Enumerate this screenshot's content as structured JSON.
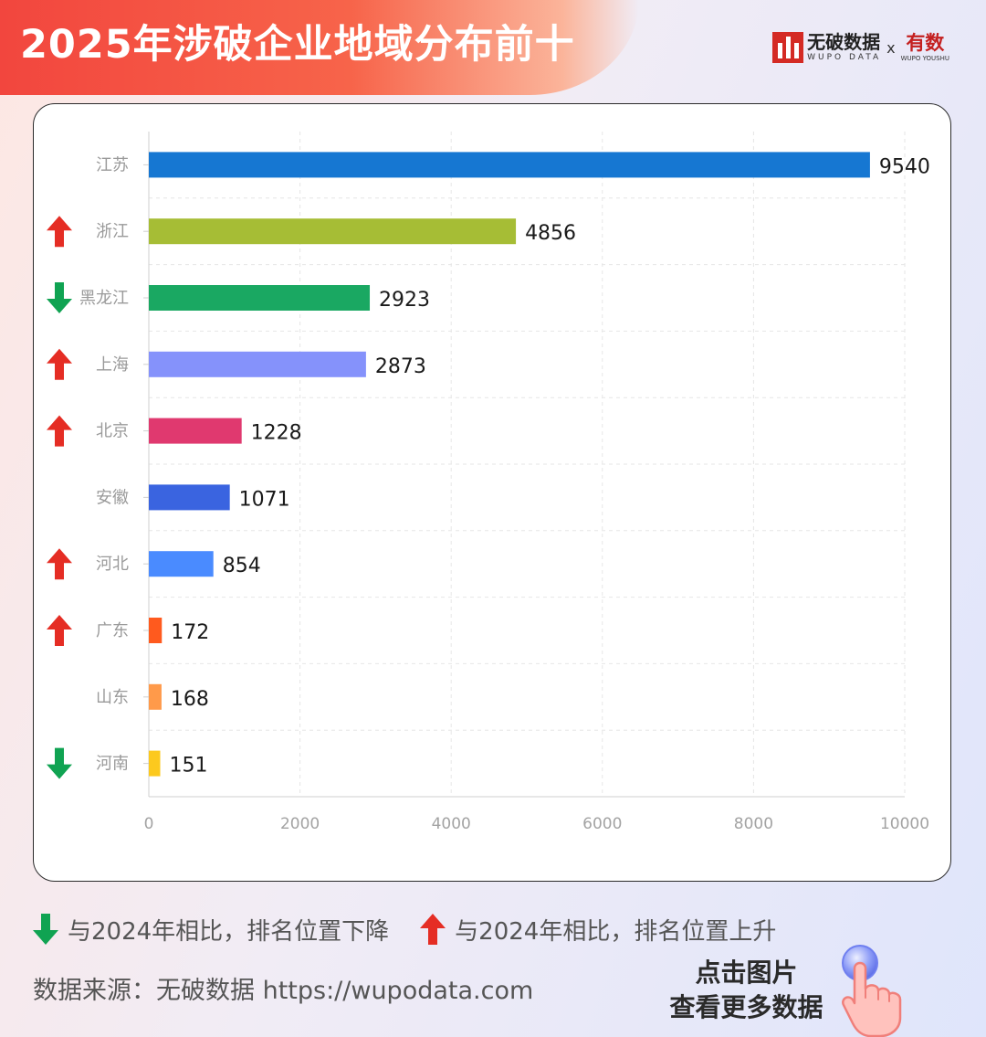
{
  "header": {
    "title": "2025年涉破企业地域分布前十",
    "brand_name": "无破数据",
    "brand_sub": "WUPO DATA",
    "brand_x": "x",
    "brand2_name": "有数",
    "brand2_sub": "WUPO YOUSHU"
  },
  "chart_data": {
    "type": "bar",
    "orientation": "horizontal",
    "categories": [
      "江苏",
      "浙江",
      "黑龙江",
      "上海",
      "北京",
      "安徽",
      "河北",
      "广东",
      "山东",
      "河南"
    ],
    "values": [
      9540,
      4856,
      2923,
      2873,
      1228,
      1071,
      854,
      172,
      168,
      151
    ],
    "bar_colors": [
      "#1677d2",
      "#a6bd35",
      "#1aa862",
      "#8592fb",
      "#e0396f",
      "#3a64e0",
      "#4a8bff",
      "#ff5a1e",
      "#ff9a4a",
      "#fcc91e"
    ],
    "rank_change": [
      "none",
      "up",
      "down",
      "up",
      "up",
      "none",
      "up",
      "up",
      "none",
      "down"
    ],
    "xlim": [
      0,
      10000
    ],
    "xticks": [
      0,
      2000,
      4000,
      6000,
      8000,
      10000
    ],
    "grid": true
  },
  "colors": {
    "up": "#e52d24",
    "down": "#10a352"
  },
  "legend": {
    "down_label": "与2024年相比，排名位置下降",
    "up_label": "与2024年相比，排名位置上升"
  },
  "footer": {
    "source": "数据来源：无破数据 https://wupodata.com",
    "cta_line1": "点击图片",
    "cta_line2": "查看更多数据"
  }
}
